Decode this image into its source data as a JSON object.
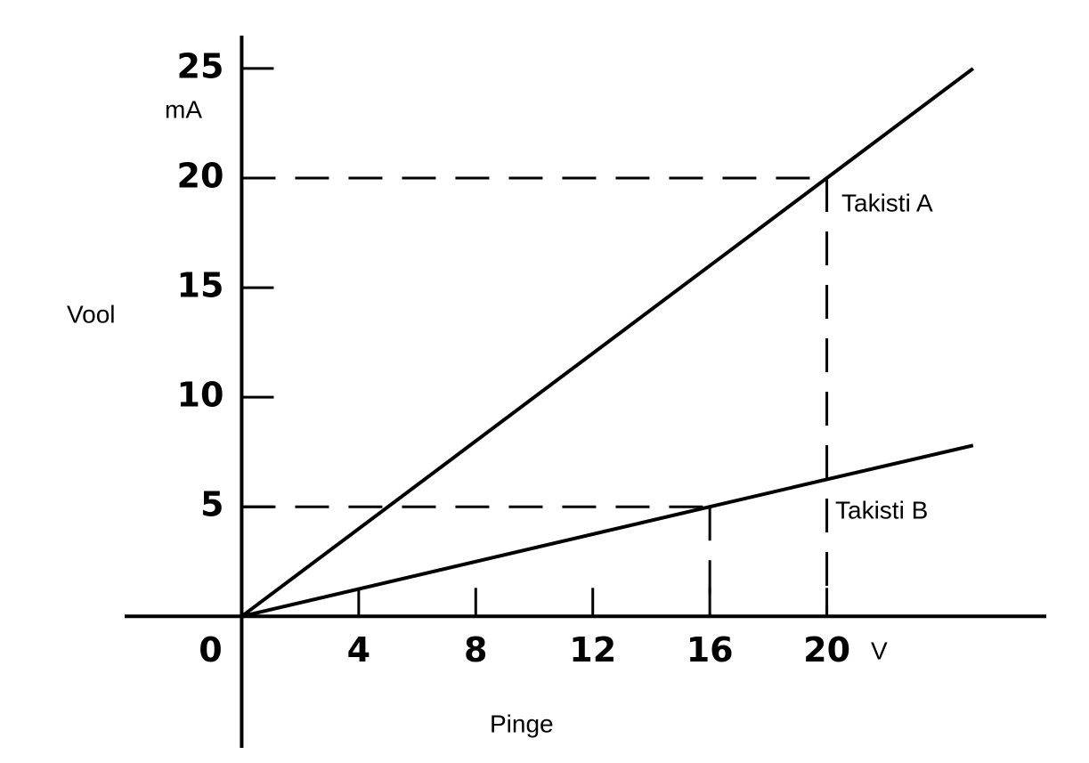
{
  "chart_data": {
    "type": "line",
    "x_label": "Pinge",
    "x_unit": "V",
    "y_label": "Vool",
    "y_unit": "mA",
    "x": [
      0,
      16,
      20,
      25
    ],
    "series": [
      {
        "name": "Takisti A",
        "color": "#000000",
        "values": [
          0,
          16,
          20,
          25
        ]
      },
      {
        "name": "Takisti B",
        "color": "#000000",
        "values": [
          0,
          5,
          6.25,
          7.8
        ]
      }
    ],
    "guides": [
      {
        "x": 20,
        "y": 20
      },
      {
        "x": 16,
        "y": 5
      }
    ],
    "xlim": [
      -4,
      27.5
    ],
    "ylim": [
      -6,
      26.5
    ],
    "xticks": [
      0,
      4,
      8,
      12,
      16,
      20
    ],
    "yticks": [
      5,
      10,
      15,
      20,
      25
    ]
  }
}
